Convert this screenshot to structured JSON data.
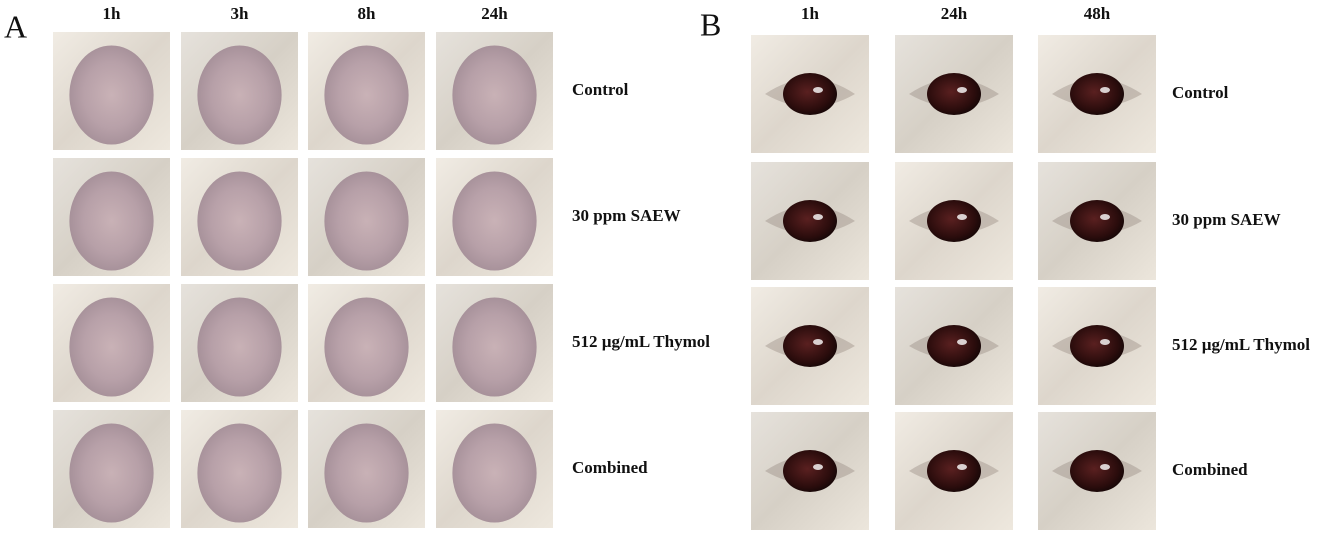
{
  "panels": [
    {
      "letter": "A",
      "columns": [
        "1h",
        "3h",
        "8h",
        "24h"
      ],
      "rows": [
        "Control",
        "30 ppm SAEW",
        "512 µg/mL Thymol",
        "Combined"
      ]
    },
    {
      "letter": "B",
      "columns": [
        "1h",
        "24h",
        "48h"
      ],
      "rows": [
        "Control",
        "30 ppm SAEW",
        "512 µg/mL Thymol",
        "Combined"
      ]
    }
  ]
}
